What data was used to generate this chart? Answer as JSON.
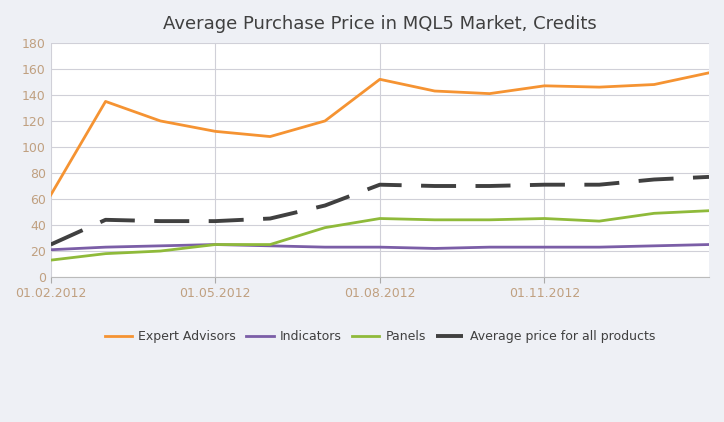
{
  "title": "Average Purchase Price in MQL5 Market, Credits",
  "x_labels": [
    "01.02.2012",
    "01.05.2012",
    "01.08.2012",
    "01.11.2012"
  ],
  "series": {
    "Expert Advisors": {
      "color": "#f59332",
      "linewidth": 2.0,
      "values": [
        63,
        135,
        120,
        112,
        108,
        120,
        152,
        143,
        141,
        147,
        146,
        148,
        157
      ]
    },
    "Indicators": {
      "color": "#7b5ea7",
      "linewidth": 2.0,
      "values": [
        21,
        23,
        24,
        25,
        24,
        23,
        23,
        22,
        23,
        23,
        23,
        24,
        25
      ]
    },
    "Panels": {
      "color": "#8fba3a",
      "linewidth": 2.0,
      "values": [
        13,
        18,
        20,
        25,
        25,
        38,
        45,
        44,
        44,
        45,
        43,
        49,
        51
      ]
    },
    "Average price for all products": {
      "color": "#404040",
      "linewidth": 2.8,
      "values": [
        25,
        44,
        43,
        43,
        45,
        55,
        71,
        70,
        70,
        71,
        71,
        75,
        77
      ]
    }
  },
  "ylim": [
    0,
    180
  ],
  "yticks": [
    0,
    20,
    40,
    60,
    80,
    100,
    120,
    140,
    160,
    180
  ],
  "x_tick_positions": [
    0,
    3,
    6,
    9
  ],
  "n_points": 13,
  "legend_order": [
    "Expert Advisors",
    "Indicators",
    "Panels",
    "Average price for all products"
  ],
  "background_color": "#eef0f5",
  "plot_bg_color": "#ffffff",
  "grid_color": "#d0d0d8",
  "tick_color": "#c0a080",
  "title_color": "#404040"
}
